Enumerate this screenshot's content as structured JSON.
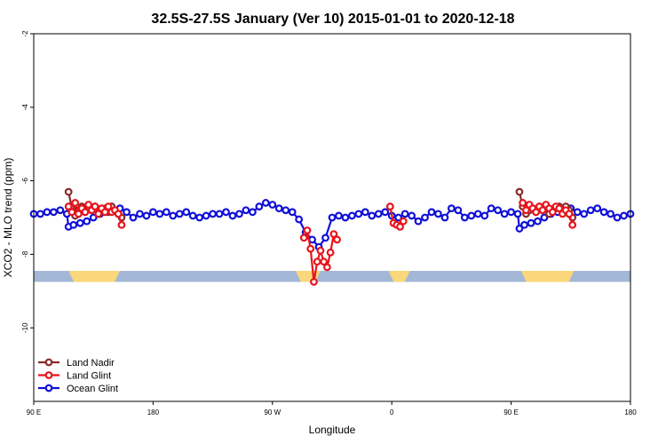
{
  "chart_data": {
    "type": "line",
    "title": "32.5S-27.5S January (Ver 10)   2015-01-01 to 2020-12-18",
    "xlabel": "Longitude",
    "ylabel": "XCO2 - MLO trend (ppm)",
    "xlim": [
      90,
      450
    ],
    "ylim": [
      -12,
      -2
    ],
    "y_reversed": true,
    "x_ticks": [
      {
        "value": 90,
        "label": "90 E"
      },
      {
        "value": 180,
        "label": "180"
      },
      {
        "value": 270,
        "label": "90 W"
      },
      {
        "value": 360,
        "label": "0"
      },
      {
        "value": 450,
        "label": "90 E"
      },
      {
        "value": 540,
        "label": "180"
      }
    ],
    "x_ticks_shown": [
      90,
      162,
      234,
      306,
      378,
      450
    ],
    "y_ticks": [
      {
        "value": -2,
        "label": "-2"
      },
      {
        "value": -4,
        "label": "-4"
      },
      {
        "value": -6,
        "label": "-6"
      },
      {
        "value": -8,
        "label": "-8"
      },
      {
        "value": -10,
        "label": "-10"
      }
    ],
    "legend_position": "bottom-left",
    "land_band": {
      "y_range": [
        -8.45,
        -8.75
      ],
      "ocean_color": "#a3b7d6",
      "land_color": "#f9d77a",
      "land_segments": [
        [
          111,
          142
        ],
        [
          248,
          263
        ],
        [
          304,
          317
        ],
        [
          384,
          416
        ]
      ]
    },
    "series": [
      {
        "name": "Land Nadir",
        "color": "#8b2a2a",
        "x": [
          111,
          113,
          115,
          117,
          119,
          121,
          123,
          125,
          127,
          129,
          131,
          133,
          135,
          137,
          139,
          141,
          143,
          383,
          385,
          387,
          389,
          391,
          393,
          395,
          397,
          399,
          401,
          403,
          405,
          407,
          409,
          411,
          413,
          415
        ],
        "y": [
          -6.3,
          -6.75,
          -6.95,
          -6.8,
          -6.7,
          -6.85,
          -6.75,
          -6.8,
          -6.7,
          -6.9,
          -6.8,
          -6.75,
          -6.85,
          -6.7,
          -6.8,
          -6.9,
          -7.0,
          -6.3,
          -6.7,
          -6.9,
          -6.8,
          -6.75,
          -6.85,
          -6.7,
          -6.8,
          -6.7,
          -6.9,
          -6.8,
          -6.75,
          -6.7,
          -6.85,
          -6.7,
          -6.8,
          -7.0
        ]
      },
      {
        "name": "Land Glint",
        "color": "#e8141c",
        "x": [
          111,
          113,
          115,
          117,
          119,
          121,
          123,
          125,
          127,
          129,
          131,
          133,
          135,
          137,
          139,
          141,
          143,
          253,
          255,
          257,
          259,
          261,
          263,
          265,
          267,
          269,
          271,
          273,
          305,
          307,
          309,
          311,
          313,
          385,
          387,
          389,
          391,
          393,
          395,
          397,
          399,
          401,
          403,
          405,
          407,
          409,
          411,
          413,
          415
        ],
        "y": [
          -6.7,
          -6.85,
          -6.6,
          -6.9,
          -6.75,
          -6.85,
          -6.65,
          -6.8,
          -6.7,
          -6.9,
          -6.75,
          -6.85,
          -6.7,
          -6.85,
          -6.8,
          -6.9,
          -7.2,
          -7.55,
          -7.35,
          -7.85,
          -8.75,
          -8.2,
          -7.9,
          -8.2,
          -8.35,
          -7.95,
          -7.45,
          -7.6,
          -6.7,
          -7.15,
          -7.2,
          -7.25,
          -7.1,
          -6.6,
          -6.8,
          -6.65,
          -6.75,
          -6.85,
          -6.7,
          -6.8,
          -6.65,
          -6.75,
          -6.85,
          -6.7,
          -6.75,
          -6.9,
          -6.8,
          -6.9,
          -7.2
        ]
      },
      {
        "name": "Ocean Glint",
        "color": "#1010d8",
        "x": [
          90,
          94,
          98,
          102,
          106,
          110,
          111,
          114,
          118,
          122,
          126,
          130,
          134,
          138,
          142,
          146,
          150,
          154,
          158,
          162,
          166,
          170,
          174,
          178,
          182,
          186,
          190,
          194,
          198,
          202,
          206,
          210,
          214,
          218,
          222,
          226,
          230,
          234,
          238,
          242,
          246,
          250,
          254,
          258,
          262,
          266,
          270,
          274,
          278,
          282,
          286,
          290,
          294,
          298,
          302,
          306,
          310,
          314,
          318,
          322,
          326,
          330,
          334,
          338,
          342,
          346,
          350,
          354,
          358,
          362,
          366,
          370,
          374,
          378,
          382,
          383,
          386,
          390,
          394,
          398,
          402,
          406,
          410,
          414,
          418,
          422,
          426,
          430,
          434,
          438,
          442,
          446,
          450
        ],
        "y": [
          -6.9,
          -6.9,
          -6.85,
          -6.85,
          -6.8,
          -6.9,
          -7.25,
          -7.2,
          -7.15,
          -7.1,
          -7.0,
          -6.9,
          -6.85,
          -6.8,
          -6.75,
          -6.85,
          -7.0,
          -6.9,
          -6.95,
          -6.85,
          -6.9,
          -6.85,
          -6.95,
          -6.9,
          -6.85,
          -6.95,
          -7.0,
          -6.95,
          -6.9,
          -6.9,
          -6.85,
          -6.95,
          -6.9,
          -6.8,
          -6.85,
          -6.7,
          -6.6,
          -6.65,
          -6.75,
          -6.8,
          -6.85,
          -7.05,
          -7.4,
          -7.6,
          -7.8,
          -7.55,
          -7.0,
          -6.95,
          -7.0,
          -6.95,
          -6.9,
          -6.85,
          -6.95,
          -6.9,
          -6.85,
          -6.95,
          -7.0,
          -6.9,
          -6.95,
          -7.1,
          -7.0,
          -6.85,
          -6.9,
          -7.0,
          -6.75,
          -6.8,
          -7.0,
          -6.95,
          -6.9,
          -6.95,
          -6.75,
          -6.8,
          -6.9,
          -6.85,
          -6.9,
          -7.3,
          -7.2,
          -7.15,
          -7.1,
          -7.0,
          -6.9,
          -6.85,
          -6.8,
          -6.75,
          -6.85,
          -6.9,
          -6.8,
          -6.75,
          -6.85,
          -6.9,
          -7.0,
          -6.95,
          -6.9
        ]
      }
    ]
  }
}
